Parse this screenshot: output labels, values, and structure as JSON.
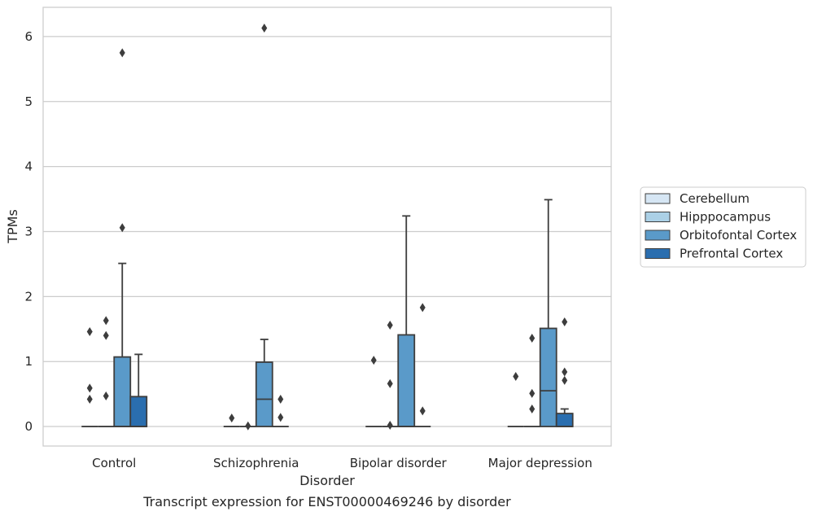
{
  "caption": "Transcript expression for ENST00000469246 by disorder",
  "chart_data": {
    "type": "box",
    "xlabel": "Disorder",
    "ylabel": "TPMs",
    "categories": [
      "Control",
      "Schizophrenia",
      "Bipolar disorder",
      "Major depression"
    ],
    "ylim": [
      -0.3,
      6.45
    ],
    "yticks": [
      0,
      1,
      2,
      3,
      4,
      5,
      6
    ],
    "grid": "horizontal",
    "legend_position": "right",
    "series": [
      {
        "name": "Cerebellum",
        "color": "#d6e6f4",
        "boxes": [
          {
            "q1": 0,
            "median": 0,
            "q3": 0,
            "whisker_low": 0,
            "whisker_high": 0,
            "outliers": [
              0.42,
              0.59,
              1.46
            ]
          },
          {
            "q1": 0,
            "median": 0,
            "q3": 0,
            "whisker_low": 0,
            "whisker_high": 0,
            "outliers": [
              0.13
            ]
          },
          {
            "q1": 0,
            "median": 0,
            "q3": 0,
            "whisker_low": 0,
            "whisker_high": 0,
            "outliers": [
              1.02
            ]
          },
          {
            "q1": 0,
            "median": 0,
            "q3": 0,
            "whisker_low": 0,
            "whisker_high": 0,
            "outliers": [
              0.77
            ]
          }
        ]
      },
      {
        "name": "Hipppocampus",
        "color": "#abd0e6",
        "boxes": [
          {
            "q1": 0,
            "median": 0,
            "q3": 0,
            "whisker_low": 0,
            "whisker_high": 0,
            "outliers": [
              0.47,
              1.4,
              1.63
            ]
          },
          {
            "q1": 0,
            "median": 0,
            "q3": 0,
            "whisker_low": 0,
            "whisker_high": 0,
            "outliers": [
              0.01
            ]
          },
          {
            "q1": 0,
            "median": 0,
            "q3": 0,
            "whisker_low": 0,
            "whisker_high": 0,
            "outliers": [
              0.02,
              0.66,
              1.56
            ]
          },
          {
            "q1": 0,
            "median": 0,
            "q3": 0,
            "whisker_low": 0,
            "whisker_high": 0,
            "outliers": [
              0.27,
              0.51,
              1.36
            ]
          }
        ]
      },
      {
        "name": "Orbitofontal Cortex",
        "color": "#5a9ac9",
        "boxes": [
          {
            "q1": 0,
            "median": 0,
            "q3": 1.07,
            "whisker_low": 0,
            "whisker_high": 2.51,
            "outliers": [
              3.06,
              5.75
            ]
          },
          {
            "q1": 0,
            "median": 0.42,
            "q3": 0.99,
            "whisker_low": 0,
            "whisker_high": 1.34,
            "outliers": [
              6.13
            ]
          },
          {
            "q1": 0,
            "median": 0,
            "q3": 1.41,
            "whisker_low": 0,
            "whisker_high": 3.24,
            "outliers": []
          },
          {
            "q1": 0,
            "median": 0.55,
            "q3": 1.51,
            "whisker_low": 0,
            "whisker_high": 3.49,
            "outliers": []
          }
        ]
      },
      {
        "name": "Prefrontal Cortex",
        "color": "#2a6eaf",
        "boxes": [
          {
            "q1": 0,
            "median": 0,
            "q3": 0.46,
            "whisker_low": 0,
            "whisker_high": 1.11,
            "outliers": []
          },
          {
            "q1": 0,
            "median": 0,
            "q3": 0,
            "whisker_low": 0,
            "whisker_high": 0,
            "outliers": [
              0.14,
              0.42
            ]
          },
          {
            "q1": 0,
            "median": 0,
            "q3": 0,
            "whisker_low": 0,
            "whisker_high": 0,
            "outliers": [
              0.24,
              1.83
            ]
          },
          {
            "q1": 0,
            "median": 0,
            "q3": 0.2,
            "whisker_low": 0,
            "whisker_high": 0.27,
            "outliers": [
              0.71,
              0.84,
              1.61
            ]
          }
        ]
      }
    ]
  }
}
